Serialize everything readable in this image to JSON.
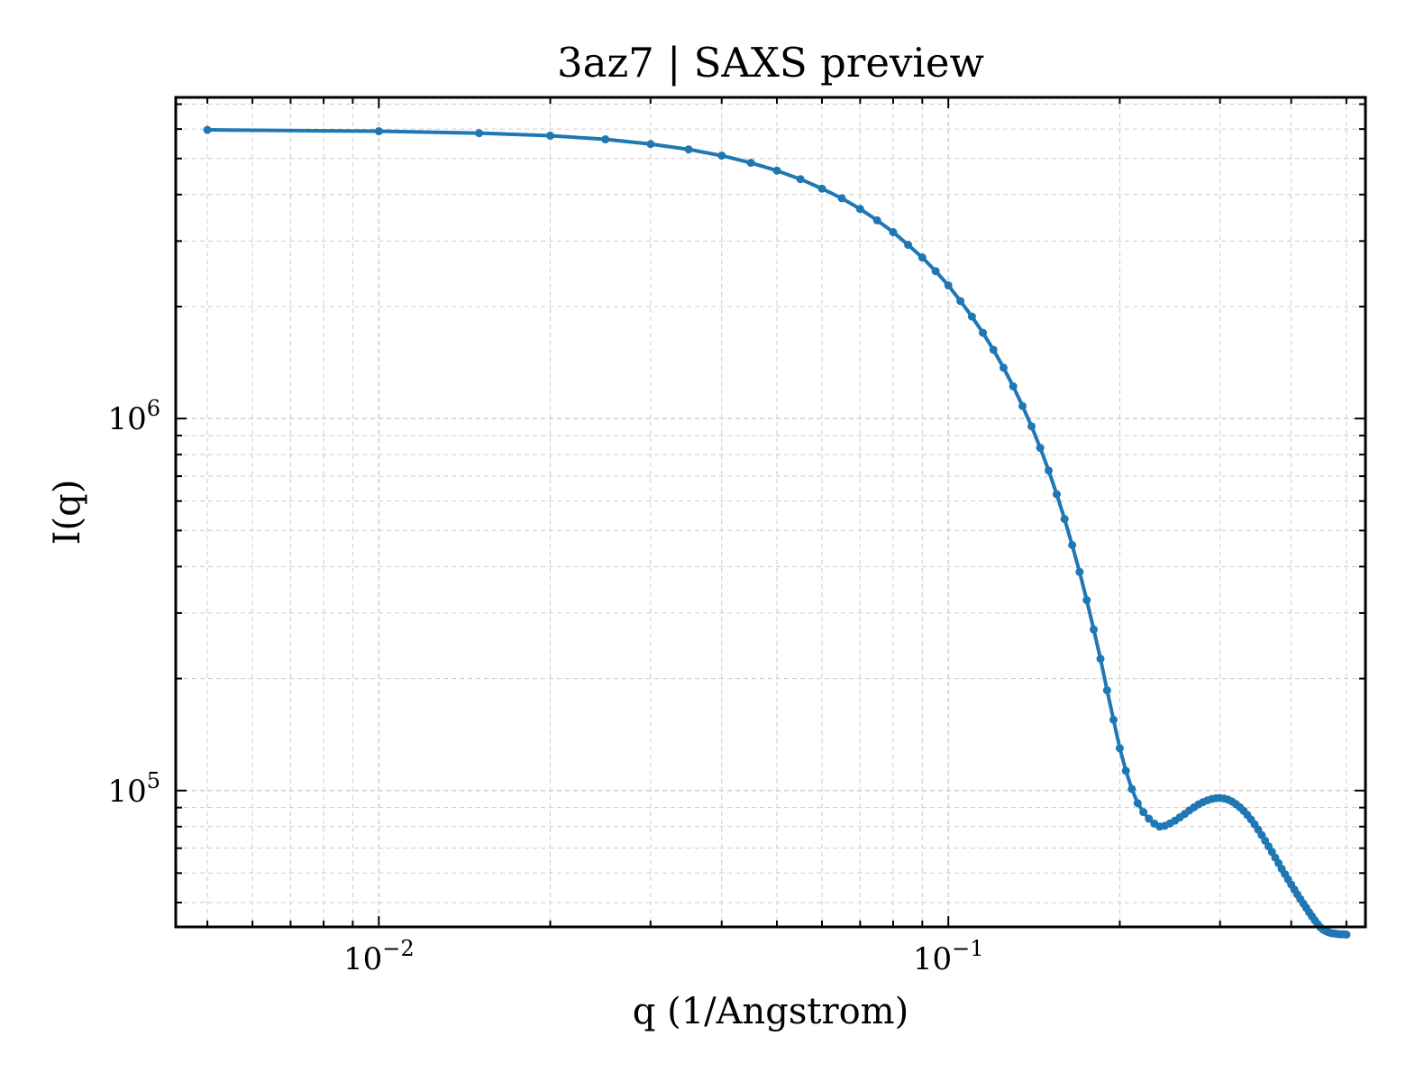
{
  "chart_data": {
    "type": "line",
    "title": "3az7 | SAXS preview",
    "xlabel": "q (1/Angstrom)",
    "ylabel": "I(q)",
    "x_scale": "log",
    "y_scale": "log",
    "xlim": [
      0.0044,
      0.54
    ],
    "ylim": [
      43000,
      7300000
    ],
    "x_ticks": [
      {
        "base": "10",
        "exp": "−2",
        "value": 0.01
      },
      {
        "base": "10",
        "exp": "−1",
        "value": 0.1
      }
    ],
    "y_ticks": [
      {
        "base": "10",
        "exp": "5",
        "value": 100000
      },
      {
        "base": "10",
        "exp": "6",
        "value": 1000000
      }
    ],
    "grid": true,
    "legend": "none",
    "colors": {
      "line": "#1f77b4",
      "grid": "#cccccc",
      "axes": "#000000"
    },
    "series": [
      {
        "x": [
          0.005,
          0.01,
          0.015,
          0.02,
          0.025,
          0.03,
          0.035,
          0.04,
          0.045,
          0.05,
          0.055,
          0.06,
          0.065,
          0.07,
          0.075,
          0.08,
          0.085,
          0.09,
          0.095,
          0.1,
          0.105,
          0.11,
          0.115,
          0.12,
          0.125,
          0.13,
          0.135,
          0.14,
          0.145,
          0.15,
          0.155,
          0.16,
          0.165,
          0.17,
          0.175,
          0.18,
          0.185,
          0.19,
          0.195,
          0.2,
          0.205,
          0.21,
          0.215,
          0.22,
          0.225,
          0.23,
          0.235,
          0.24,
          0.245,
          0.25,
          0.255,
          0.26,
          0.265,
          0.27,
          0.275,
          0.28,
          0.285,
          0.29,
          0.295,
          0.3,
          0.305,
          0.31,
          0.315,
          0.32,
          0.325,
          0.33,
          0.335,
          0.34,
          0.345,
          0.35,
          0.355,
          0.36,
          0.365,
          0.37,
          0.375,
          0.38,
          0.385,
          0.39,
          0.395,
          0.4,
          0.405,
          0.41,
          0.415,
          0.42,
          0.425,
          0.43,
          0.435,
          0.44,
          0.445,
          0.45,
          0.455,
          0.46,
          0.465,
          0.47,
          0.475,
          0.48,
          0.485,
          0.49,
          0.495,
          0.5
        ],
        "y": [
          5970000,
          5920000,
          5850000,
          5760000,
          5630000,
          5470000,
          5290000,
          5090000,
          4870000,
          4640000,
          4400000,
          4150000,
          3910000,
          3660000,
          3410000,
          3170000,
          2930000,
          2710000,
          2490000,
          2280000,
          2070000,
          1880000,
          1700000,
          1530000,
          1370000,
          1220000,
          1080000,
          953000,
          834000,
          725000,
          626000,
          537000,
          457000,
          387000,
          325000,
          271000,
          226000,
          186000,
          155000,
          130000,
          113000,
          101000,
          92500,
          87500,
          84000,
          81500,
          80000,
          80400,
          81600,
          83000,
          84700,
          86500,
          88400,
          90200,
          91800,
          93100,
          94100,
          94900,
          95400,
          95500,
          95200,
          94500,
          93400,
          91900,
          90200,
          88200,
          86000,
          83600,
          81100,
          78500,
          75900,
          73300,
          70800,
          68400,
          66000,
          63800,
          61600,
          59600,
          57700,
          55900,
          54200,
          52600,
          51100,
          49700,
          48400,
          47100,
          45900,
          44800,
          43800,
          42900,
          42300,
          41900,
          41600,
          41400,
          41300,
          41200,
          41100,
          41100,
          41100,
          41000
        ]
      }
    ]
  }
}
